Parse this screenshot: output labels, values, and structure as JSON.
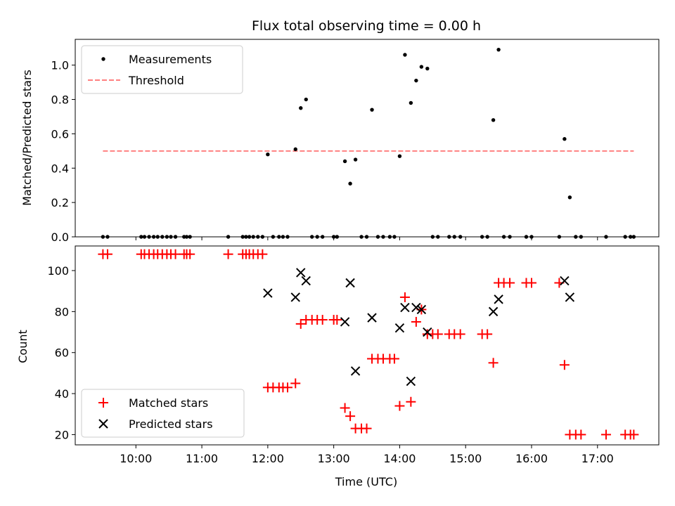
{
  "colors": {
    "threshold": "#ff8080",
    "matched": "#ff0000",
    "predicted": "#000000",
    "measurement": "#000000"
  },
  "chart_data": [
    {
      "id": "ratio",
      "type": "scatter",
      "title": "Flux total observing time = 0.00 h",
      "ylabel": "Matched/Predicted stars",
      "xlabel": "",
      "xlim": [
        9.08,
        17.93
      ],
      "ylim": [
        0.0,
        1.15
      ],
      "yticks": [
        0.0,
        0.2,
        0.4,
        0.6,
        0.8,
        1.0
      ],
      "ytick_labels": [
        "0.0",
        "0.2",
        "0.4",
        "0.6",
        "0.8",
        "1.0"
      ],
      "xticks": [
        10,
        11,
        12,
        13,
        14,
        15,
        16,
        17
      ],
      "legend": {
        "position": "upper-left",
        "entries": [
          "Measurements",
          "Threshold"
        ]
      },
      "threshold": {
        "name": "Threshold",
        "x": [
          9.5,
          17.55
        ],
        "y": 0.5
      },
      "series": [
        {
          "name": "Measurements",
          "marker": "dot",
          "points": [
            [
              9.5,
              0
            ],
            [
              9.57,
              0
            ],
            [
              10.08,
              0
            ],
            [
              10.13,
              0
            ],
            [
              10.2,
              0
            ],
            [
              10.27,
              0
            ],
            [
              10.33,
              0
            ],
            [
              10.4,
              0
            ],
            [
              10.47,
              0
            ],
            [
              10.53,
              0
            ],
            [
              10.6,
              0
            ],
            [
              10.73,
              0
            ],
            [
              10.77,
              0
            ],
            [
              10.82,
              0
            ],
            [
              11.4,
              0
            ],
            [
              11.62,
              0
            ],
            [
              11.67,
              0
            ],
            [
              11.72,
              0
            ],
            [
              11.78,
              0
            ],
            [
              11.85,
              0
            ],
            [
              11.92,
              0
            ],
            [
              12.0,
              0.48
            ],
            [
              12.08,
              0
            ],
            [
              12.17,
              0
            ],
            [
              12.23,
              0
            ],
            [
              12.3,
              0
            ],
            [
              12.42,
              0.51
            ],
            [
              12.5,
              0.75
            ],
            [
              12.58,
              0.8
            ],
            [
              12.67,
              0
            ],
            [
              12.75,
              0
            ],
            [
              12.83,
              0
            ],
            [
              13.0,
              0
            ],
            [
              13.05,
              0
            ],
            [
              13.17,
              0.44
            ],
            [
              13.25,
              0.31
            ],
            [
              13.33,
              0.45
            ],
            [
              13.42,
              0
            ],
            [
              13.5,
              0
            ],
            [
              13.58,
              0.74
            ],
            [
              13.67,
              0
            ],
            [
              13.75,
              0
            ],
            [
              13.85,
              0
            ],
            [
              13.92,
              0
            ],
            [
              14.0,
              0.47
            ],
            [
              14.08,
              1.06
            ],
            [
              14.17,
              0.78
            ],
            [
              14.25,
              0.91
            ],
            [
              14.33,
              0.99
            ],
            [
              14.42,
              0.98
            ],
            [
              14.5,
              0
            ],
            [
              14.58,
              0
            ],
            [
              14.75,
              0
            ],
            [
              14.83,
              0
            ],
            [
              14.92,
              0
            ],
            [
              15.25,
              0
            ],
            [
              15.33,
              0
            ],
            [
              15.42,
              0.68
            ],
            [
              15.5,
              1.09
            ],
            [
              15.58,
              0
            ],
            [
              15.67,
              0
            ],
            [
              15.92,
              0
            ],
            [
              16.0,
              0
            ],
            [
              16.42,
              0
            ],
            [
              16.5,
              0.57
            ],
            [
              16.58,
              0.23
            ],
            [
              16.67,
              0
            ],
            [
              16.75,
              0
            ],
            [
              17.13,
              0
            ],
            [
              17.42,
              0
            ],
            [
              17.5,
              0
            ],
            [
              17.55,
              0
            ]
          ]
        }
      ]
    },
    {
      "id": "count",
      "type": "scatter",
      "title": "",
      "ylabel": "Count",
      "xlabel": "Time (UTC)",
      "xlim": [
        9.08,
        17.93
      ],
      "ylim": [
        15,
        112
      ],
      "yticks": [
        20,
        40,
        60,
        80,
        100
      ],
      "ytick_labels": [
        "20",
        "40",
        "60",
        "80",
        "100"
      ],
      "xticks": [
        10,
        11,
        12,
        13,
        14,
        15,
        16,
        17
      ],
      "xtick_labels": [
        "10:00",
        "11:00",
        "12:00",
        "13:00",
        "14:00",
        "15:00",
        "16:00",
        "17:00"
      ],
      "legend": {
        "position": "lower-left",
        "entries": [
          "Matched stars",
          "Predicted stars"
        ]
      },
      "series": [
        {
          "name": "Matched stars",
          "marker": "plus",
          "points": [
            [
              9.5,
              108
            ],
            [
              9.57,
              108
            ],
            [
              10.08,
              108
            ],
            [
              10.13,
              108
            ],
            [
              10.2,
              108
            ],
            [
              10.27,
              108
            ],
            [
              10.33,
              108
            ],
            [
              10.4,
              108
            ],
            [
              10.47,
              108
            ],
            [
              10.53,
              108
            ],
            [
              10.6,
              108
            ],
            [
              10.73,
              108
            ],
            [
              10.77,
              108
            ],
            [
              10.82,
              108
            ],
            [
              11.4,
              108
            ],
            [
              11.62,
              108
            ],
            [
              11.67,
              108
            ],
            [
              11.72,
              108
            ],
            [
              11.78,
              108
            ],
            [
              11.85,
              108
            ],
            [
              11.92,
              108
            ],
            [
              12.0,
              43
            ],
            [
              12.08,
              43
            ],
            [
              12.17,
              43
            ],
            [
              12.23,
              43
            ],
            [
              12.3,
              43
            ],
            [
              12.42,
              45
            ],
            [
              12.5,
              74
            ],
            [
              12.58,
              76
            ],
            [
              12.67,
              76
            ],
            [
              12.75,
              76
            ],
            [
              12.83,
              76
            ],
            [
              13.0,
              76
            ],
            [
              13.05,
              76
            ],
            [
              13.17,
              33
            ],
            [
              13.25,
              29
            ],
            [
              13.33,
              23
            ],
            [
              13.42,
              23
            ],
            [
              13.5,
              23
            ],
            [
              13.58,
              57
            ],
            [
              13.67,
              57
            ],
            [
              13.75,
              57
            ],
            [
              13.85,
              57
            ],
            [
              13.92,
              57
            ],
            [
              14.0,
              34
            ],
            [
              14.08,
              87
            ],
            [
              14.17,
              36
            ],
            [
              14.25,
              75
            ],
            [
              14.33,
              81
            ],
            [
              14.42,
              69
            ],
            [
              14.5,
              69
            ],
            [
              14.58,
              69
            ],
            [
              14.75,
              69
            ],
            [
              14.83,
              69
            ],
            [
              14.92,
              69
            ],
            [
              15.25,
              69
            ],
            [
              15.33,
              69
            ],
            [
              15.42,
              55
            ],
            [
              15.5,
              94
            ],
            [
              15.58,
              94
            ],
            [
              15.67,
              94
            ],
            [
              15.92,
              94
            ],
            [
              16.0,
              94
            ],
            [
              16.42,
              94
            ],
            [
              16.5,
              54
            ],
            [
              16.58,
              20
            ],
            [
              16.67,
              20
            ],
            [
              16.75,
              20
            ],
            [
              17.13,
              20
            ],
            [
              17.42,
              20
            ],
            [
              17.5,
              20
            ],
            [
              17.55,
              20
            ]
          ]
        },
        {
          "name": "Predicted stars",
          "marker": "x",
          "points": [
            [
              12.0,
              89
            ],
            [
              12.42,
              87
            ],
            [
              12.5,
              99
            ],
            [
              12.58,
              95
            ],
            [
              13.17,
              75
            ],
            [
              13.25,
              94
            ],
            [
              13.33,
              51
            ],
            [
              13.58,
              77
            ],
            [
              14.0,
              72
            ],
            [
              14.08,
              82
            ],
            [
              14.17,
              46
            ],
            [
              14.25,
              82
            ],
            [
              14.33,
              81
            ],
            [
              14.42,
              70
            ],
            [
              15.42,
              80
            ],
            [
              15.5,
              86
            ],
            [
              16.5,
              95
            ],
            [
              16.58,
              87
            ]
          ]
        }
      ]
    }
  ]
}
